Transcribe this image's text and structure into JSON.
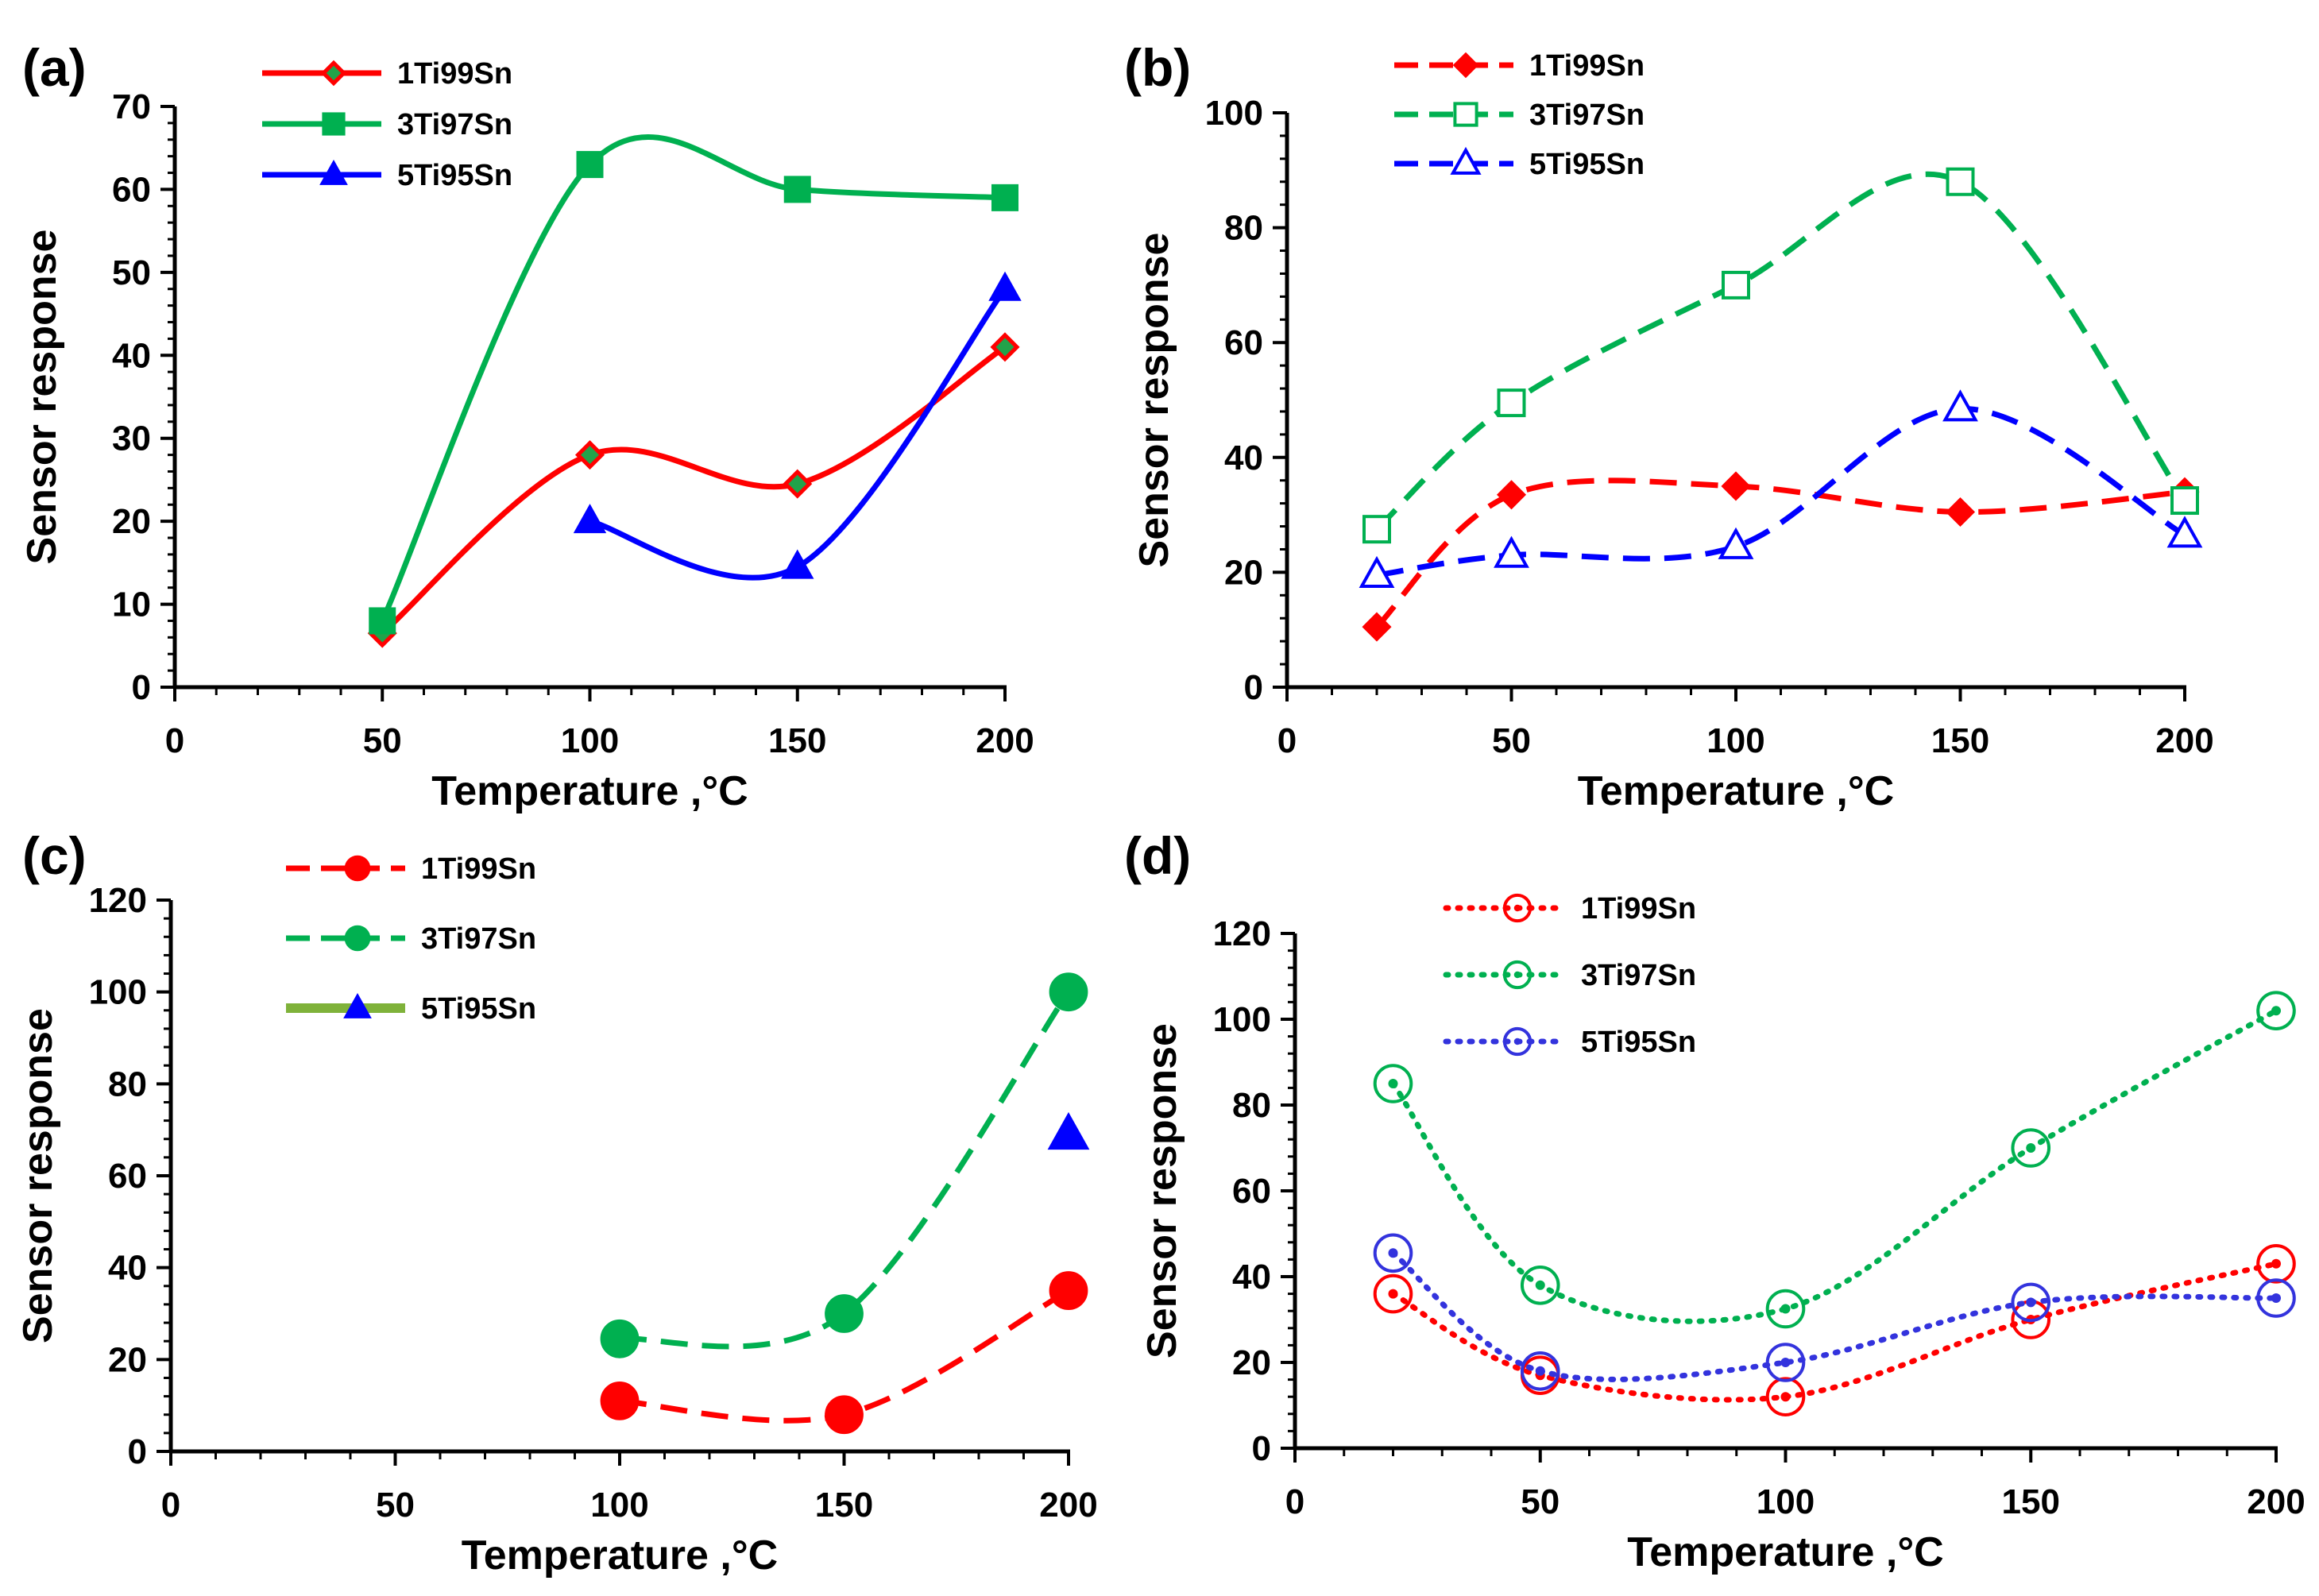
{
  "chart_data": [
    {
      "panel": "(a)",
      "type": "line",
      "smooth": true,
      "xlabel": "Temperature ,°C",
      "ylabel": "Sensor response",
      "xlim": [
        0,
        200
      ],
      "ylim": [
        0,
        70
      ],
      "xticks": [
        0,
        50,
        100,
        150,
        200
      ],
      "yticks": [
        0,
        10,
        20,
        30,
        40,
        50,
        60,
        70
      ],
      "legend_position": "top-left",
      "series": [
        {
          "name": "1Ti99Sn",
          "color": "#ff0000",
          "marker": "diamond",
          "marker_fill": "#22a34a",
          "marker_edge": "#ff0000",
          "dash": "solid",
          "x": [
            50,
            100,
            150,
            200
          ],
          "y": [
            6.5,
            28,
            24.5,
            41
          ]
        },
        {
          "name": "3Ti97Sn",
          "color": "#00b050",
          "marker": "square",
          "marker_fill": "#00b050",
          "marker_edge": "#00b050",
          "dash": "solid",
          "x": [
            50,
            100,
            150,
            200
          ],
          "y": [
            8,
            63,
            60,
            59
          ]
        },
        {
          "name": "5Ti95Sn",
          "color": "#0000ff",
          "marker": "triangle",
          "marker_fill": "#0000ff",
          "marker_edge": "#0000ff",
          "dash": "solid",
          "x": [
            100,
            150,
            200
          ],
          "y": [
            20,
            14.5,
            48
          ]
        }
      ]
    },
    {
      "panel": "(b)",
      "type": "line",
      "smooth": true,
      "xlabel": "Temperature ,°C",
      "ylabel": "Sensor response",
      "xlim": [
        0,
        200
      ],
      "ylim": [
        0,
        100
      ],
      "xticks": [
        0,
        50,
        100,
        150,
        200
      ],
      "yticks": [
        0,
        20,
        40,
        60,
        80,
        100
      ],
      "legend_position": "top-left",
      "series": [
        {
          "name": "1Ti99Sn",
          "color": "#ff0000",
          "marker": "diamond",
          "marker_fill": "#ff0000",
          "marker_edge": "#ff0000",
          "dash": "dashed",
          "x": [
            20,
            50,
            100,
            150,
            200
          ],
          "y": [
            10.5,
            33.5,
            35,
            30.5,
            34
          ]
        },
        {
          "name": "3Ti97Sn",
          "color": "#00b050",
          "marker": "square",
          "marker_fill": "none",
          "marker_edge": "#00b050",
          "dash": "dashed",
          "x": [
            20,
            50,
            100,
            150,
            200
          ],
          "y": [
            27.5,
            49.5,
            70,
            88,
            32.5
          ]
        },
        {
          "name": "5Ti95Sn",
          "color": "#0000ff",
          "marker": "triangle",
          "marker_fill": "none",
          "marker_edge": "#0000ff",
          "dash": "dashed",
          "x": [
            20,
            50,
            100,
            150,
            200
          ],
          "y": [
            19.5,
            23,
            24.5,
            48.5,
            26.5
          ]
        }
      ]
    },
    {
      "panel": "(c)",
      "type": "line",
      "smooth": true,
      "xlabel": "Temperature ,°C",
      "ylabel": "Sensor response",
      "xlim": [
        0,
        200
      ],
      "ylim": [
        0,
        120
      ],
      "xticks": [
        0,
        50,
        100,
        150,
        200
      ],
      "yticks": [
        0,
        20,
        40,
        60,
        80,
        100,
        120
      ],
      "legend_position": "top-left",
      "series": [
        {
          "name": "1Ti99Sn",
          "color": "#ff0000",
          "marker": "circle",
          "marker_fill": "#ff0000",
          "marker_edge": "#ff0000",
          "dash": "dashed",
          "x": [
            100,
            150,
            200
          ],
          "y": [
            11,
            8,
            35
          ]
        },
        {
          "name": "3Ti97Sn",
          "color": "#00b050",
          "marker": "circle",
          "marker_fill": "#00b050",
          "marker_edge": "#00b050",
          "dash": "dashed",
          "x": [
            100,
            150,
            200
          ],
          "y": [
            24.5,
            30,
            100
          ]
        },
        {
          "name": "5Ti95Sn",
          "color": "#7fb23a",
          "marker": "triangle",
          "marker_fill": "#0000ff",
          "marker_edge": "#0000ff",
          "dash": "none",
          "x": [
            200
          ],
          "y": [
            69
          ]
        }
      ]
    },
    {
      "panel": "(d)",
      "type": "line",
      "smooth": true,
      "xlabel": "Temperature ,°C",
      "ylabel": "Sensor response",
      "xlim": [
        0,
        200
      ],
      "ylim": [
        0,
        120
      ],
      "xticks": [
        0,
        50,
        100,
        150,
        200
      ],
      "yticks": [
        0,
        20,
        40,
        60,
        80,
        100,
        120
      ],
      "legend_position": "top-left",
      "series": [
        {
          "name": "1Ti99Sn",
          "color": "#ff0000",
          "marker": "circle-open",
          "marker_fill": "none",
          "marker_edge": "#ff0000",
          "dash": "dotted",
          "x": [
            20,
            50,
            100,
            150,
            200
          ],
          "y": [
            36,
            17,
            12,
            30,
            43
          ]
        },
        {
          "name": "3Ti97Sn",
          "color": "#00b050",
          "marker": "circle-open",
          "marker_fill": "none",
          "marker_edge": "#00b050",
          "dash": "dotted",
          "x": [
            20,
            50,
            100,
            150,
            200
          ],
          "y": [
            85,
            38,
            32.5,
            70,
            102
          ]
        },
        {
          "name": "5Ti95Sn",
          "color": "#3333dd",
          "marker": "circle-open",
          "marker_fill": "none",
          "marker_edge": "#3333dd",
          "dash": "dotted",
          "x": [
            20,
            50,
            100,
            150,
            200
          ],
          "y": [
            45.5,
            18,
            20,
            34,
            35
          ]
        }
      ]
    }
  ]
}
